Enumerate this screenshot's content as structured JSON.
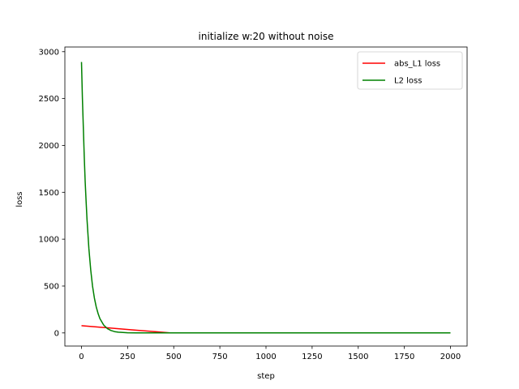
{
  "chart_data": {
    "type": "line",
    "title": "initialize w:20 without noise",
    "xlabel": "step",
    "ylabel": "loss",
    "xlim": [
      -90,
      2090
    ],
    "ylim": [
      -140,
      3050
    ],
    "xticks": [
      0,
      250,
      500,
      750,
      1000,
      1250,
      1500,
      1750,
      2000
    ],
    "yticks": [
      0,
      500,
      1000,
      1500,
      2000,
      2500,
      3000
    ],
    "grid": false,
    "legend_position": "top-right",
    "series": [
      {
        "name": "abs_L1 loss",
        "color": "#ff0000",
        "x": [
          0,
          100,
          200,
          300,
          400,
          480,
          500,
          750,
          1000,
          1250,
          1500,
          1750,
          2000
        ],
        "y": [
          77,
          61,
          45,
          29,
          13,
          1,
          0,
          0,
          0,
          0,
          0,
          0,
          0
        ]
      },
      {
        "name": "L2 loss",
        "color": "#008000",
        "x": [
          0,
          5,
          10,
          15,
          20,
          25,
          30,
          40,
          50,
          60,
          70,
          80,
          90,
          100,
          120,
          140,
          160,
          180,
          200,
          250,
          300,
          400,
          500,
          750,
          1000,
          1250,
          1500,
          1750,
          2000
        ],
        "y": [
          2890,
          2510,
          2180,
          1880,
          1620,
          1400,
          1210,
          900,
          670,
          500,
          372,
          277,
          206,
          153,
          85,
          47,
          26,
          14,
          8,
          2,
          0,
          0,
          0,
          0,
          0,
          0,
          0,
          0,
          0
        ]
      }
    ]
  }
}
